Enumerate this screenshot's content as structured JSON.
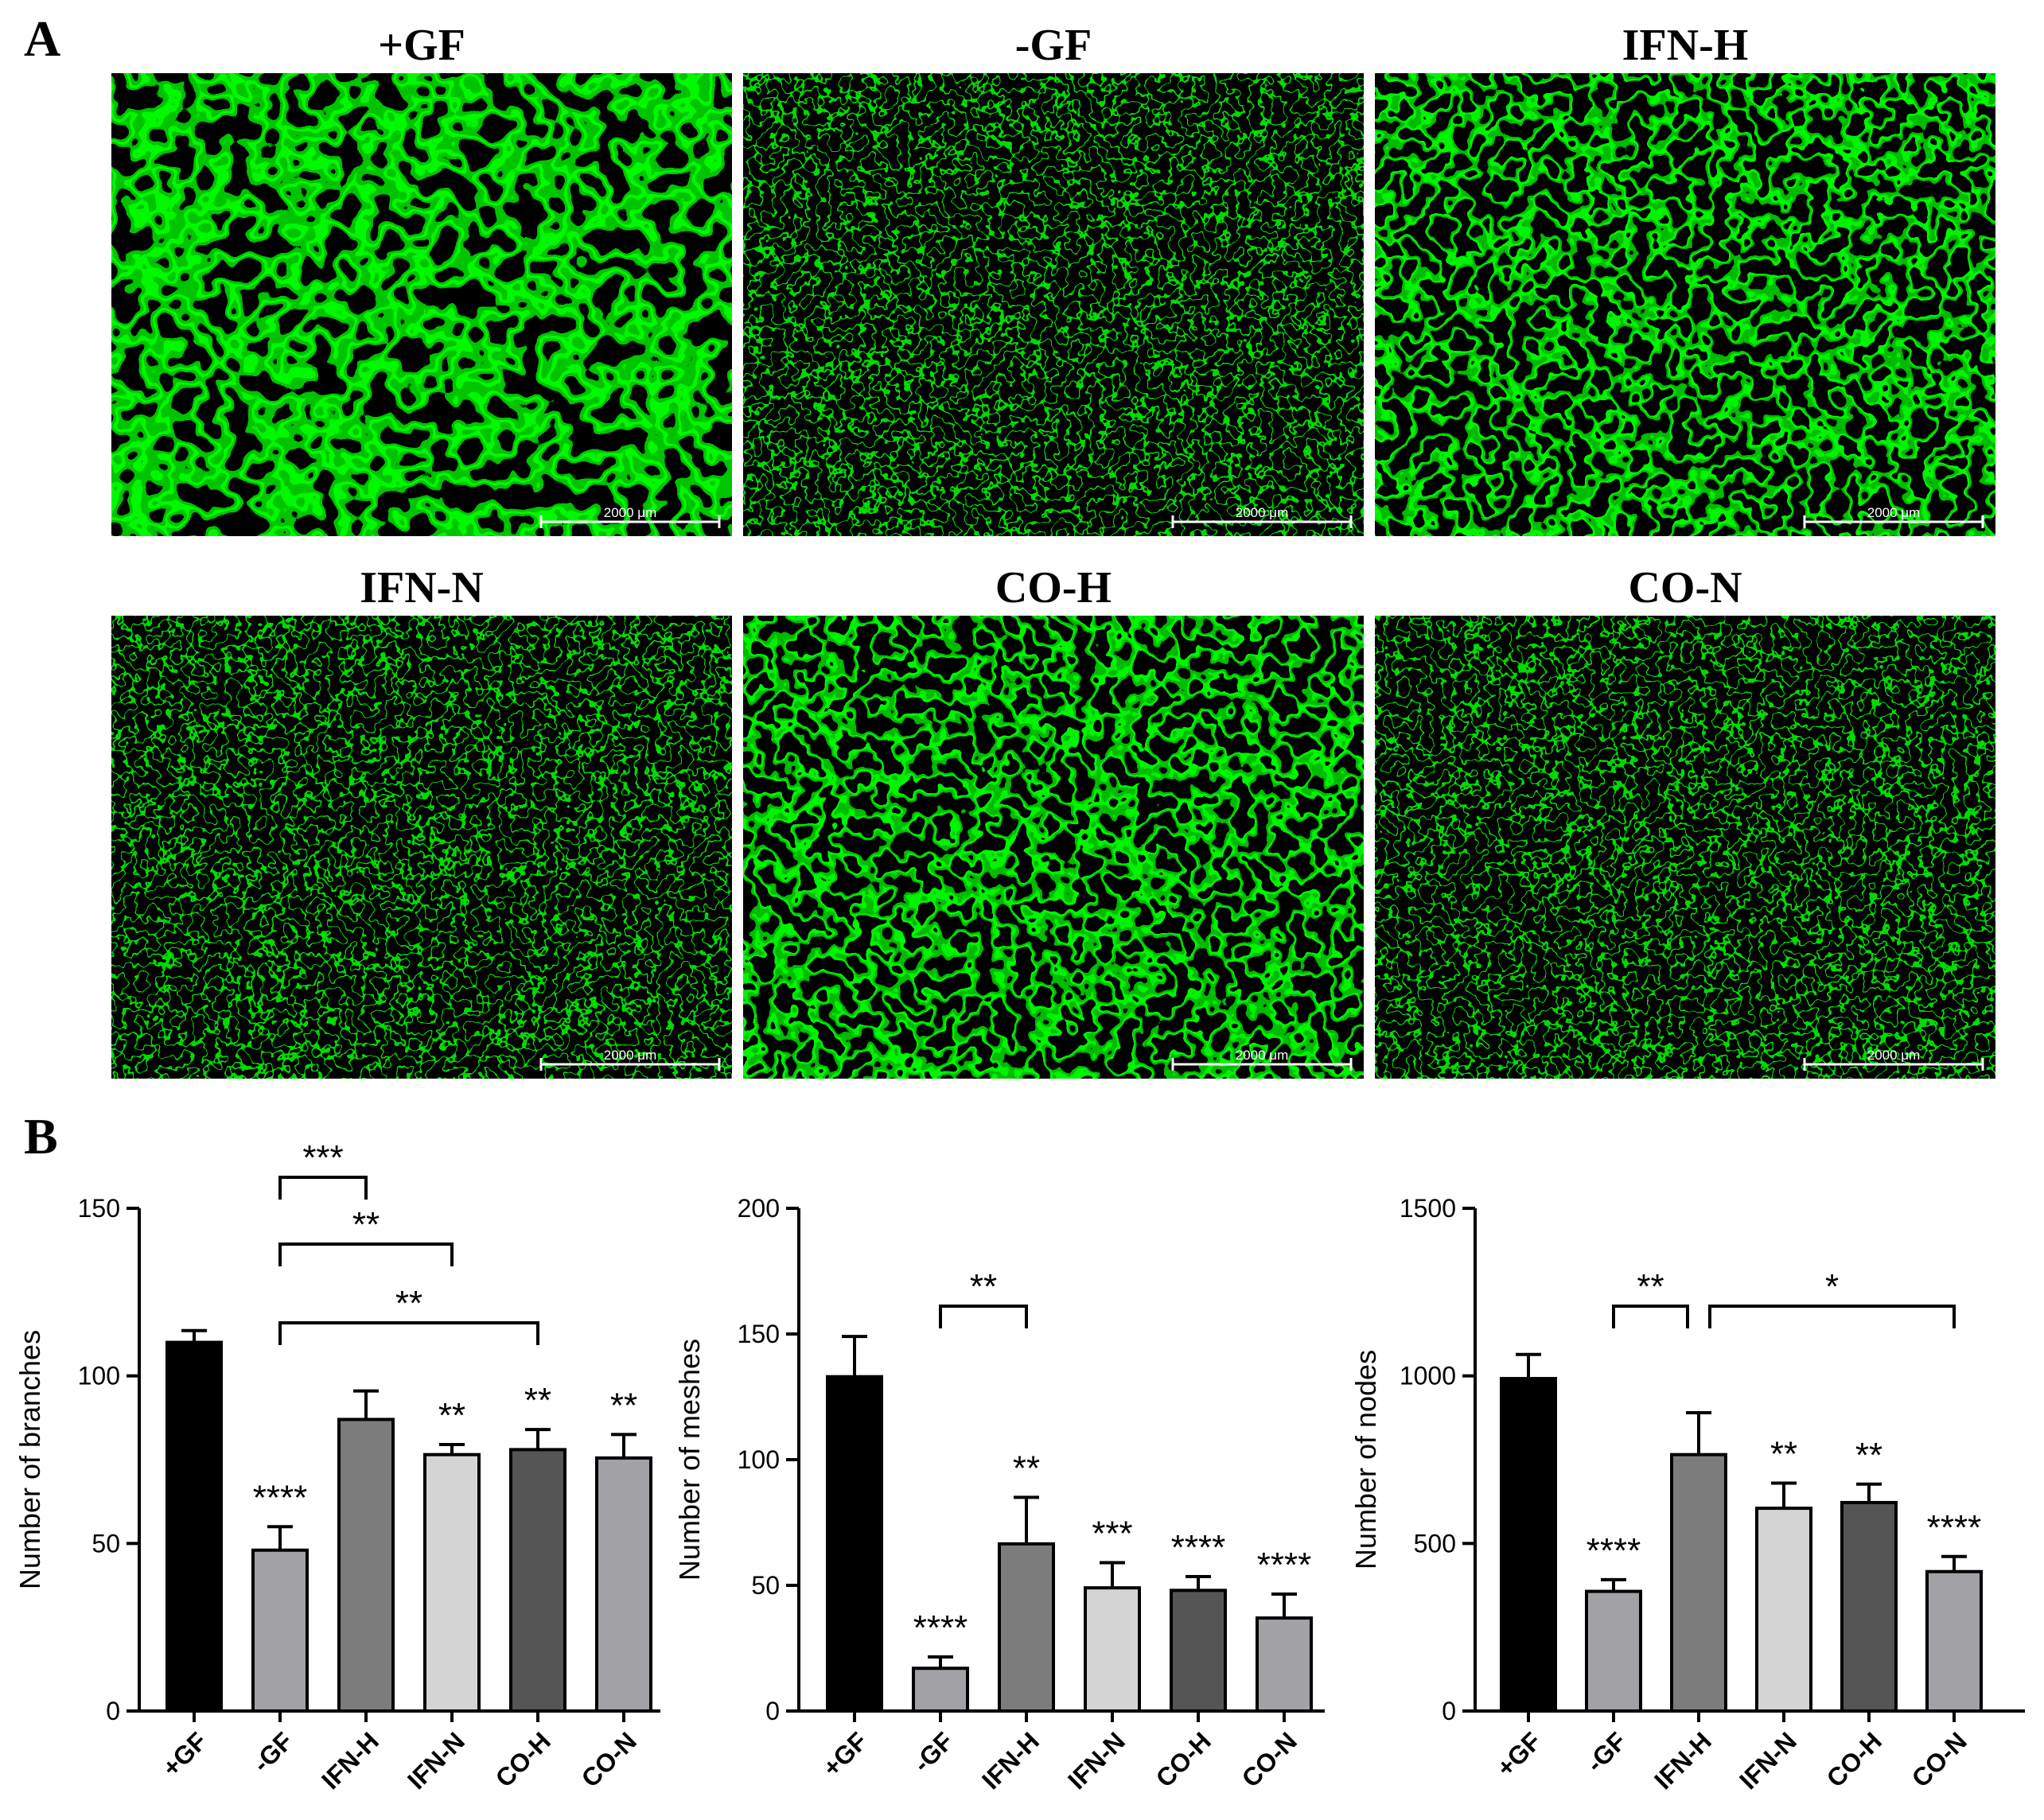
{
  "panel_letters": [
    "A",
    "B"
  ],
  "micrographs": [
    {
      "title": "+GF",
      "scale_label": "2000 μm"
    },
    {
      "title": "-GF",
      "scale_label": "2000 μm"
    },
    {
      "title": "IFN-H",
      "scale_label": "2000 μm"
    },
    {
      "title": "IFN-N",
      "scale_label": "2000 μm"
    },
    {
      "title": "CO-H",
      "scale_label": "2000 μm"
    },
    {
      "title": "CO-N",
      "scale_label": "2000 μm"
    }
  ],
  "colors": {
    "stain": "#2ee82e",
    "bars": [
      "#000000",
      "#a1a1a6",
      "#7c7c7c",
      "#d4d4d4",
      "#555555",
      "#a1a1a6"
    ]
  },
  "chart_data": [
    {
      "type": "bar",
      "categories": [
        "+GF",
        "-GF",
        "IFN-H",
        "IFN-N",
        "CO-H",
        "CO-N"
      ],
      "values": [
        110,
        48,
        87,
        76.5,
        78,
        75.5
      ],
      "errors": [
        3.5,
        7,
        8.5,
        3,
        6,
        7
      ],
      "ylabel": "Number of branches",
      "ylim": [
        0,
        150
      ],
      "yticks": [
        0,
        50,
        100,
        150
      ],
      "bar_stars": [
        "",
        "****",
        "",
        "**",
        "**",
        "**"
      ],
      "comparisons": [
        {
          "from": 1,
          "to": 2,
          "label": "***"
        },
        {
          "from": 1,
          "to": 3,
          "label": "**"
        },
        {
          "from": 1,
          "to": 4,
          "label": "**"
        }
      ]
    },
    {
      "type": "bar",
      "categories": [
        "+GF",
        "-GF",
        "IFN-H",
        "IFN-N",
        "CO-H",
        "CO-N"
      ],
      "values": [
        133,
        17,
        66.5,
        49,
        48,
        37
      ],
      "errors": [
        16,
        4.5,
        18.5,
        10,
        5.5,
        9.5
      ],
      "ylabel": "Number of meshes",
      "ylim": [
        0,
        200
      ],
      "yticks": [
        0,
        50,
        100,
        150,
        200
      ],
      "bar_stars": [
        "",
        "****",
        "**",
        "***",
        "****",
        "****"
      ],
      "comparisons": [
        {
          "from": 1,
          "to": 2,
          "label": "**"
        }
      ]
    },
    {
      "type": "bar",
      "categories": [
        "+GF",
        "-GF",
        "IFN-H",
        "IFN-N",
        "CO-H",
        "CO-N"
      ],
      "values": [
        992,
        357,
        765,
        605,
        622,
        416
      ],
      "errors": [
        72,
        35,
        125,
        75,
        55,
        45
      ],
      "ylabel": "Number of nodes",
      "ylim": [
        0,
        1500
      ],
      "yticks": [
        0,
        500,
        1000,
        1500
      ],
      "bar_stars": [
        "",
        "****",
        "",
        "**",
        "**",
        "****"
      ],
      "comparisons": [
        {
          "from": 1,
          "to": 2,
          "label": "**"
        },
        {
          "from": 2,
          "to": 5,
          "label": "*"
        }
      ]
    }
  ]
}
